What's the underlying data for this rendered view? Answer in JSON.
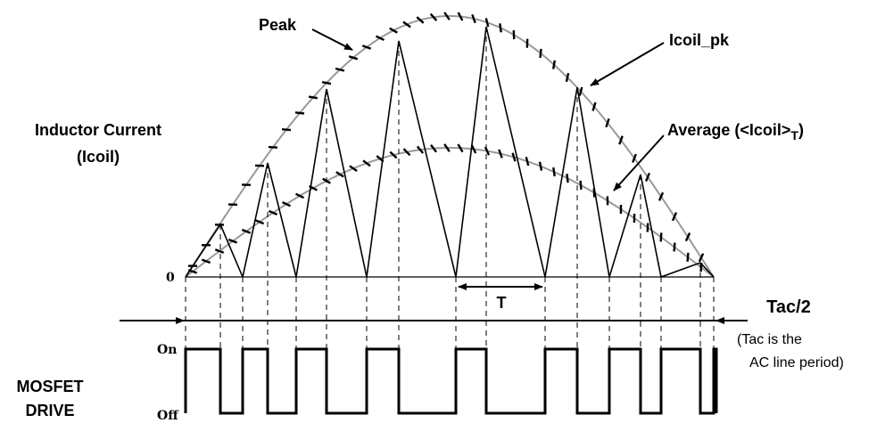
{
  "labels": {
    "peak": "Peak",
    "icoil_pk": "Icoil_pk",
    "inductor_current_line1": "Inductor Current",
    "inductor_current_line2": "(Icoil)",
    "average_prefix": "Average (<Icoil>",
    "average_sub": "T",
    "average_suffix": ")",
    "zero": "0",
    "period": "T",
    "half_period": "Tac/2",
    "note_line1": "(Tac is the",
    "note_line2": "AC line period)",
    "on": "On",
    "off": "Off",
    "mosfet_line1": "MOSFET",
    "mosfet_line2": "DRIVE"
  },
  "colors": {
    "line": "#000000",
    "envelope": "#999999"
  }
}
